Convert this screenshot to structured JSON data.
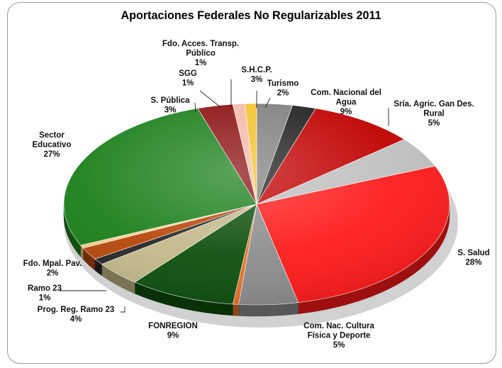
{
  "chart_data": {
    "type": "pie",
    "title": "Aportaciones Federales No Regularizables 2011",
    "slices": [
      {
        "label": "S.H.C.P.",
        "value": 3,
        "percent": "3%",
        "color": "#7f7f7f"
      },
      {
        "label": "Turismo",
        "value": 2,
        "percent": "2%",
        "color": "#1f1f1f"
      },
      {
        "label": "Com. Nacional del Agua",
        "value": 9,
        "percent": "9%",
        "color": "#c00000"
      },
      {
        "label": "Sría. Agric. Gan Des. Rural",
        "value": 5,
        "percent": "5%",
        "color": "#bfbfbf"
      },
      {
        "label": "S. Salud",
        "value": 28,
        "percent": "28%",
        "color": "#ff1a1a"
      },
      {
        "label": "Com. Nac. Cultura Física y Deporte",
        "value": 5,
        "percent": "5%",
        "color": "#8c8c8c"
      },
      {
        "label": "",
        "value": 0.5,
        "percent": "",
        "color": "#e6732a"
      },
      {
        "label": "FONREGION",
        "value": 9,
        "percent": "9%",
        "color": "#0d4f0d"
      },
      {
        "label": "Prog. Reg. Ramo 23",
        "value": 4,
        "percent": "4%",
        "color": "#c4b98a"
      },
      {
        "label": "Ramo 23",
        "value": 1,
        "percent": "1%",
        "color": "#262626"
      },
      {
        "label": "Fdo. Mpal. Pav.",
        "value": 2,
        "percent": "2%",
        "color": "#b8460b"
      },
      {
        "label": "",
        "value": 0.5,
        "percent": "",
        "color": "#f5cf8a"
      },
      {
        "label": "Sector Educativo",
        "value": 27,
        "percent": "27%",
        "color": "#1a7f1a"
      },
      {
        "label": "S. Pública",
        "value": 3,
        "percent": "3%",
        "color": "#8b0f0f"
      },
      {
        "label": "SGG",
        "value": 1,
        "percent": "1%",
        "color": "#f4b9a6"
      },
      {
        "label": "Fdo. Acces. Transp. Público",
        "value": 1,
        "percent": "1%",
        "color": "#f2c12e"
      }
    ],
    "labels": [
      {
        "lines": [
          "S.H.C.P.",
          "3%"
        ]
      },
      {
        "lines": [
          "Turismo",
          "2%"
        ]
      },
      {
        "lines": [
          "Com. Nacional del",
          "Agua",
          "9%"
        ]
      },
      {
        "lines": [
          "Sría. Agric. Gan Des.",
          "Rural",
          "5%"
        ]
      },
      {
        "lines": [
          "S. Salud",
          "28%"
        ]
      },
      {
        "lines": [
          "Com. Nac. Cultura",
          "Física y Deporte",
          "5%"
        ]
      },
      {
        "lines": [
          "FONREGION",
          "9%"
        ]
      },
      {
        "lines": [
          "Prog. Reg. Ramo 23",
          "4%"
        ]
      },
      {
        "lines": [
          "Ramo 23",
          "1%"
        ]
      },
      {
        "lines": [
          "Fdo. Mpal. Pav.",
          "2%"
        ]
      },
      {
        "lines": [
          "Sector",
          "Educativo",
          "27%"
        ]
      },
      {
        "lines": [
          "S. Pública",
          "3%"
        ]
      },
      {
        "lines": [
          "SGG",
          "1%"
        ]
      },
      {
        "lines": [
          "Fdo. Acces. Transp.",
          "Público",
          "1%"
        ]
      }
    ]
  }
}
